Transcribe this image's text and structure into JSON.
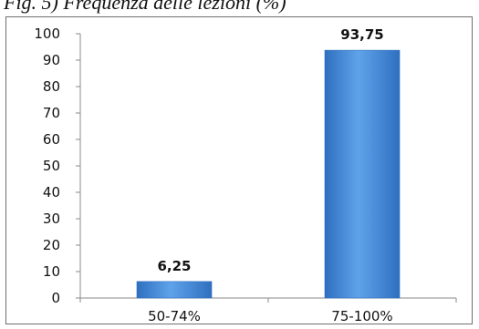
{
  "caption": "Fig. 5) Frequenza delle lezioni (%)",
  "chart_data": {
    "type": "bar",
    "title": "Fig. 5) Frequenza delle lezioni (%)",
    "categories": [
      "50-74%",
      "75-100%"
    ],
    "values": [
      6.25,
      93.75
    ],
    "data_labels": [
      "6,25",
      "93,75"
    ],
    "ylim": [
      0,
      100
    ],
    "yticks": [
      0,
      10,
      20,
      30,
      40,
      50,
      60,
      70,
      80,
      90,
      100
    ],
    "xlabel": "",
    "ylabel": "",
    "grid": false,
    "legend": "none",
    "bar_color": "#4f93dd",
    "bar_color_dark": "#2f6fc0"
  }
}
